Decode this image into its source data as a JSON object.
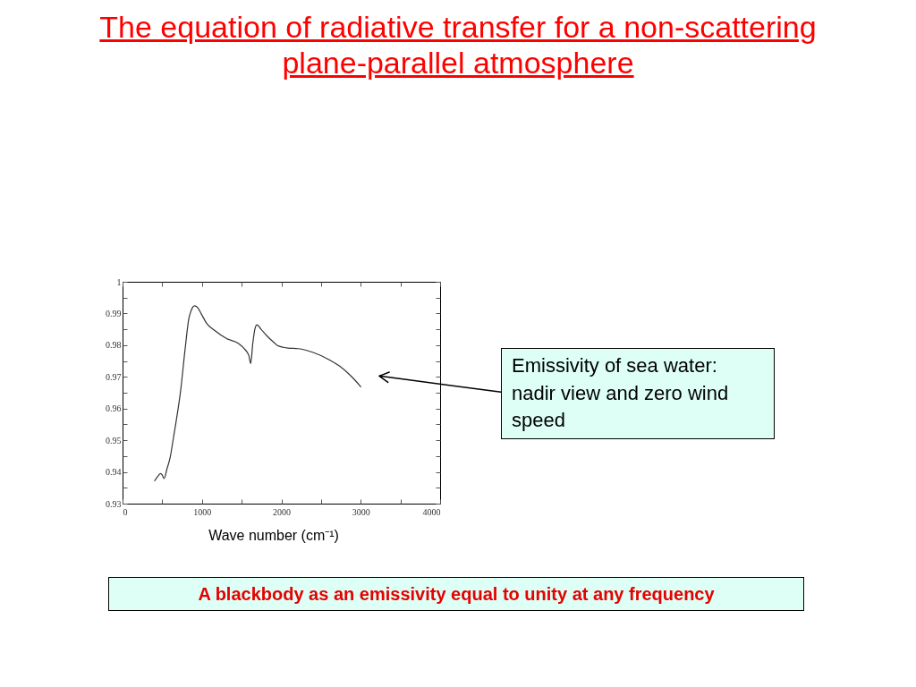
{
  "chart_data": {
    "type": "line",
    "title": "The equation of radiative transfer for a non-scattering plane-parallel atmosphere",
    "xlabel": "Wave number (cm⁻¹)",
    "x": [
      404,
      450,
      479,
      500,
      524,
      560,
      599,
      640,
      674,
      730,
      787,
      835,
      861,
      906,
      944,
      993,
      1056,
      1161,
      1311,
      1461,
      1536,
      1592,
      1614,
      1640,
      1667,
      1693,
      1742,
      1816,
      1910,
      1951,
      2082,
      2213,
      2401,
      2588,
      2738,
      2888,
      3000
    ],
    "values": [
      0.9372,
      0.9388,
      0.9395,
      0.939,
      0.9379,
      0.941,
      0.9445,
      0.9506,
      0.9558,
      0.9653,
      0.9785,
      0.9884,
      0.9907,
      0.9924,
      0.9919,
      0.9898,
      0.987,
      0.9846,
      0.9821,
      0.9805,
      0.9788,
      0.9766,
      0.9742,
      0.9804,
      0.9851,
      0.9864,
      0.9851,
      0.983,
      0.9808,
      0.9799,
      0.9791,
      0.9789,
      0.9777,
      0.9756,
      0.9733,
      0.97,
      0.9669
    ],
    "color": "#333333",
    "xlim": [
      0,
      4000
    ],
    "ylim": [
      0.93,
      1
    ],
    "xticks": [
      0,
      {
        "value": 500,
        "label": null
      },
      1000,
      {
        "value": 1500,
        "label": null
      },
      2000,
      {
        "value": 2500,
        "label": null
      },
      3000,
      {
        "value": 3500,
        "label": null
      },
      4000
    ],
    "yticks": [
      0.93,
      {
        "value": 0.935,
        "label": null
      },
      0.94,
      {
        "value": 0.945,
        "label": null
      },
      0.95,
      {
        "value": 0.955,
        "label": null
      },
      0.96,
      {
        "value": 0.965,
        "label": null
      },
      0.97,
      {
        "value": 0.975,
        "label": null
      },
      0.98,
      {
        "value": 0.985,
        "label": null
      },
      0.99,
      {
        "value": 0.995,
        "label": null
      },
      1
    ],
    "annotations": [
      "Emissivity of sea water: nadir view and zero wind speed",
      "A blackbody as an emissivity equal to unity at any frequency"
    ]
  }
}
